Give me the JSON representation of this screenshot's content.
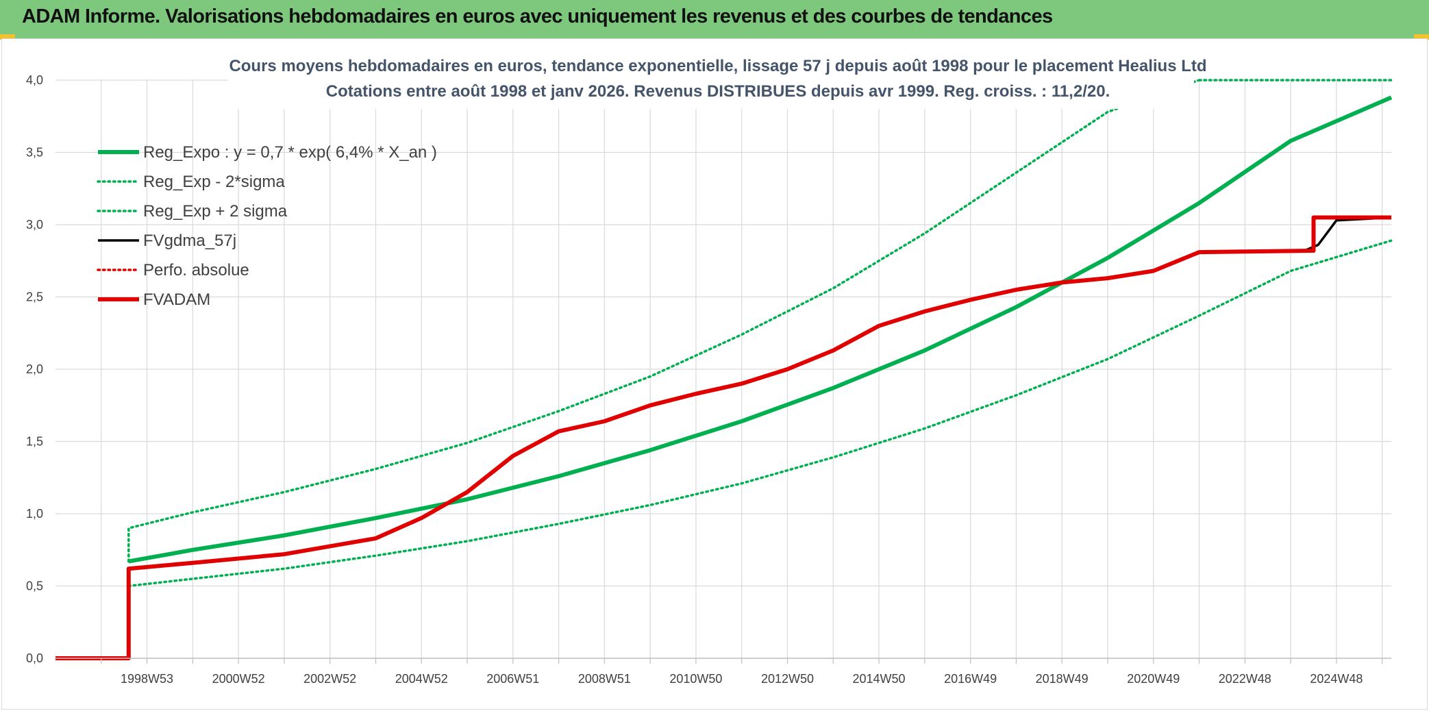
{
  "header": {
    "title": "ADAM Informe. Valorisations hebdomadaires en euros avec uniquement les revenus et des courbes de tendances"
  },
  "colors": {
    "banner": "#7ec87e",
    "green": "#00b050",
    "red": "#e00000",
    "black": "#000000",
    "grid": "#d9d9d9"
  },
  "chart_data": {
    "type": "line",
    "subtitle_lines": [
      "Cours moyens hebdomadaires en euros, tendance exponentielle, lissage 57 j depuis août 1998 pour le placement Healius Ltd",
      "Cotations entre août 1998 et janv 2026. Revenus DISTRIBUES depuis avr 1999. Reg. croiss. : 11,2/20."
    ],
    "x_tick_labels": [
      "1998W53",
      "2000W52",
      "2002W52",
      "2004W52",
      "2006W51",
      "2008W51",
      "2010W50",
      "2012W50",
      "2014W50",
      "2016W49",
      "2018W49",
      "2020W49",
      "2022W48",
      "2024W48"
    ],
    "x_tick_years": [
      1999,
      2001,
      2003,
      2005,
      2007,
      2009,
      2011,
      2013,
      2015,
      2017,
      2019,
      2021,
      2023,
      2025
    ],
    "xlim": [
      1997.0,
      2026.2
    ],
    "ylim": [
      0,
      4.0
    ],
    "y_ticks": [
      "0,0",
      "0,5",
      "1,0",
      "1,5",
      "2,0",
      "2,5",
      "3,0",
      "3,5",
      "4,0"
    ],
    "y_tick_values": [
      0,
      0.5,
      1.0,
      1.5,
      2.0,
      2.5,
      3.0,
      3.5,
      4.0
    ],
    "grid": true,
    "legend_position": "top-left",
    "series": [
      {
        "name": "Reg_Expo : y = 0,7 * exp( 6,4% *  X_an )",
        "style": "solid-thick",
        "color": "#00b050",
        "x": [
          1998.6,
          2000,
          2002,
          2004,
          2006,
          2008,
          2010,
          2012,
          2014,
          2016,
          2018,
          2020,
          2022,
          2024,
          2026.2
        ],
        "y": [
          0.67,
          0.75,
          0.85,
          0.97,
          1.1,
          1.26,
          1.44,
          1.64,
          1.87,
          2.13,
          2.43,
          2.77,
          3.15,
          3.58,
          3.88
        ]
      },
      {
        "name": "Reg_Exp - 2*sigma",
        "style": "dotted",
        "color": "#00b050",
        "x": [
          1998.6,
          2000,
          2002,
          2004,
          2006,
          2008,
          2010,
          2012,
          2014,
          2016,
          2018,
          2020,
          2022,
          2024,
          2026.2
        ],
        "y": [
          0.5,
          0.55,
          0.62,
          0.71,
          0.81,
          0.93,
          1.06,
          1.21,
          1.39,
          1.59,
          1.82,
          2.07,
          2.37,
          2.68,
          2.89
        ]
      },
      {
        "name": "Reg_Exp + 2 sigma",
        "style": "dotted",
        "color": "#00b050",
        "x": [
          1998.6,
          1998.6,
          2000,
          2002,
          2004,
          2006,
          2008,
          2010,
          2012,
          2014,
          2016,
          2018,
          2020,
          2022
        ],
        "y": [
          0.67,
          0.9,
          1.01,
          1.15,
          1.31,
          1.49,
          1.71,
          1.95,
          2.24,
          2.56,
          2.94,
          3.36,
          3.78,
          4.0
        ],
        "tail_x": [
          2022.0,
          2026.2
        ],
        "tail_y": [
          4.0,
          4.0
        ]
      },
      {
        "name": "FVgdma_57j",
        "style": "solid",
        "color": "#000000",
        "x": [
          1997.0,
          1998.6,
          1998.6,
          2000,
          2002,
          2004,
          2005,
          2006,
          2007,
          2008,
          2009,
          2010,
          2011,
          2012,
          2013,
          2014,
          2015,
          2016,
          2017,
          2018,
          2019,
          2020,
          2021,
          2022,
          2024.3,
          2024.6,
          2025.0,
          2026.2
        ],
        "y": [
          0,
          0,
          0.62,
          0.66,
          0.72,
          0.83,
          0.97,
          1.15,
          1.4,
          1.57,
          1.64,
          1.75,
          1.83,
          1.9,
          2.0,
          2.13,
          2.3,
          2.4,
          2.48,
          2.55,
          2.6,
          2.63,
          2.68,
          2.81,
          2.82,
          2.86,
          3.03,
          3.05
        ]
      },
      {
        "name": "Perfo. absolue",
        "style": "dotted",
        "color": "#e00000",
        "x": [],
        "y": []
      },
      {
        "name": "FVADAM",
        "style": "solid-thick",
        "color": "#e00000",
        "x": [
          1997.0,
          1998.6,
          1998.6,
          2000,
          2002,
          2004,
          2005,
          2006,
          2007,
          2008,
          2009,
          2010,
          2011,
          2012,
          2013,
          2014,
          2015,
          2016,
          2017,
          2018,
          2019,
          2020,
          2021,
          2022,
          2024.5,
          2024.5,
          2026.2
        ],
        "y": [
          0,
          0,
          0.62,
          0.66,
          0.72,
          0.83,
          0.97,
          1.15,
          1.4,
          1.57,
          1.64,
          1.75,
          1.83,
          1.9,
          2.0,
          2.13,
          2.3,
          2.4,
          2.48,
          2.55,
          2.6,
          2.63,
          2.68,
          2.81,
          2.82,
          3.05,
          3.05
        ]
      }
    ]
  }
}
